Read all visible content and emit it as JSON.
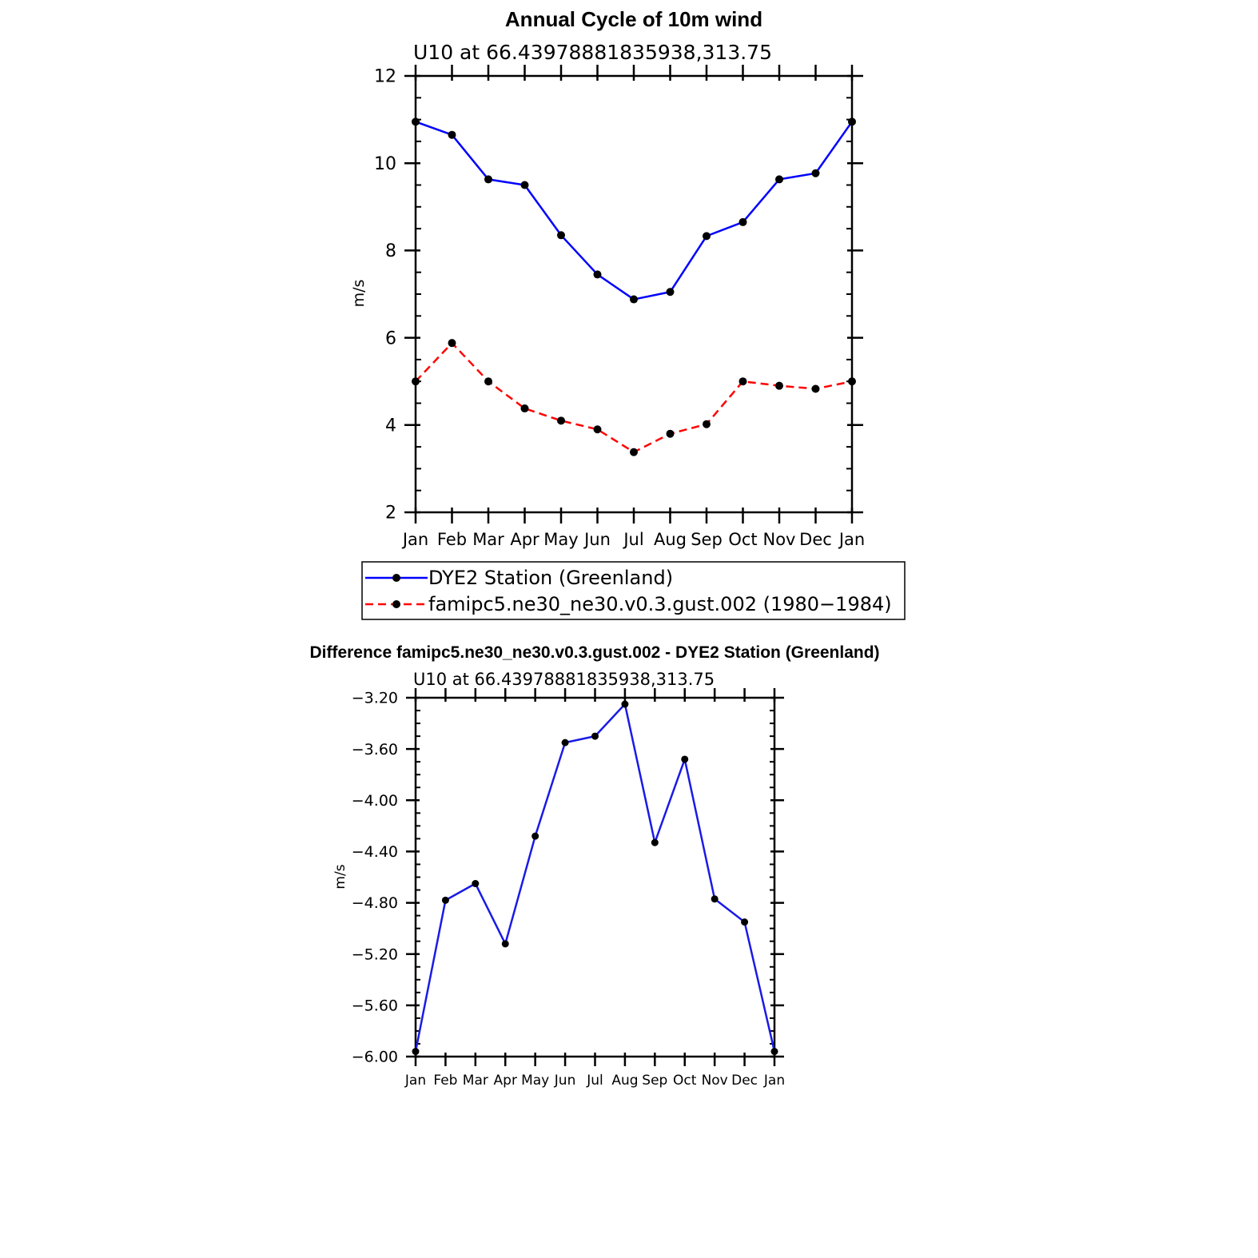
{
  "page_title": "Annual Cycle of 10m wind",
  "colors": {
    "station_line": "#0000ff",
    "model_line": "#ff0000",
    "diff_line": "#1a1ae6",
    "markers": "#000000",
    "axes": "#000000"
  },
  "chart_data": [
    {
      "type": "line",
      "title": "Annual Cycle of 10m wind",
      "subtitle": "U10 at 66.43978881835938,313.75",
      "ylabel": "m/s",
      "xlabel": "",
      "categories": [
        "Jan",
        "Feb",
        "Mar",
        "Apr",
        "May",
        "Jun",
        "Jul",
        "Aug",
        "Sep",
        "Oct",
        "Nov",
        "Dec",
        "Jan"
      ],
      "ylim": [
        2,
        12
      ],
      "yticks": [
        "2",
        "4",
        "6",
        "8",
        "10",
        "12"
      ],
      "grid": false,
      "legend_placement": "bottom",
      "series": [
        {
          "name": "DYE2 Station (Greenland)",
          "style": "solid",
          "color": "#0000ff",
          "values": [
            10.95,
            10.65,
            9.63,
            9.5,
            8.35,
            7.45,
            6.88,
            7.05,
            8.33,
            8.65,
            9.63,
            9.77,
            10.95
          ]
        },
        {
          "name": "famipc5.ne30_ne30.v0.3.gust.002 (1980−1984)",
          "style": "dashed",
          "color": "#ff0000",
          "values": [
            5.0,
            5.88,
            5.0,
            4.38,
            4.1,
            3.9,
            3.38,
            3.8,
            4.02,
            5.0,
            4.9,
            4.83,
            5.0
          ]
        }
      ]
    },
    {
      "type": "line",
      "title": "Difference famipc5.ne30_ne30.v0.3.gust.002 - DYE2 Station (Greenland)",
      "subtitle": "U10 at 66.43978881835938,313.75",
      "ylabel": "m/s",
      "xlabel": "",
      "categories": [
        "Jan",
        "Feb",
        "Mar",
        "Apr",
        "May",
        "Jun",
        "Jul",
        "Aug",
        "Sep",
        "Oct",
        "Nov",
        "Dec",
        "Jan"
      ],
      "ylim": [
        -6.0,
        -3.2
      ],
      "yticks": [
        "−6.00",
        "−5.60",
        "−5.20",
        "−4.80",
        "−4.40",
        "−4.00",
        "−3.60",
        "−3.20"
      ],
      "grid": false,
      "series": [
        {
          "color": "#1a1ae6",
          "style": "solid",
          "values": [
            -5.96,
            -4.78,
            -4.65,
            -5.12,
            -4.28,
            -3.55,
            -3.5,
            -3.25,
            -4.33,
            -3.68,
            -4.77,
            -4.95,
            -5.96
          ]
        }
      ]
    }
  ]
}
